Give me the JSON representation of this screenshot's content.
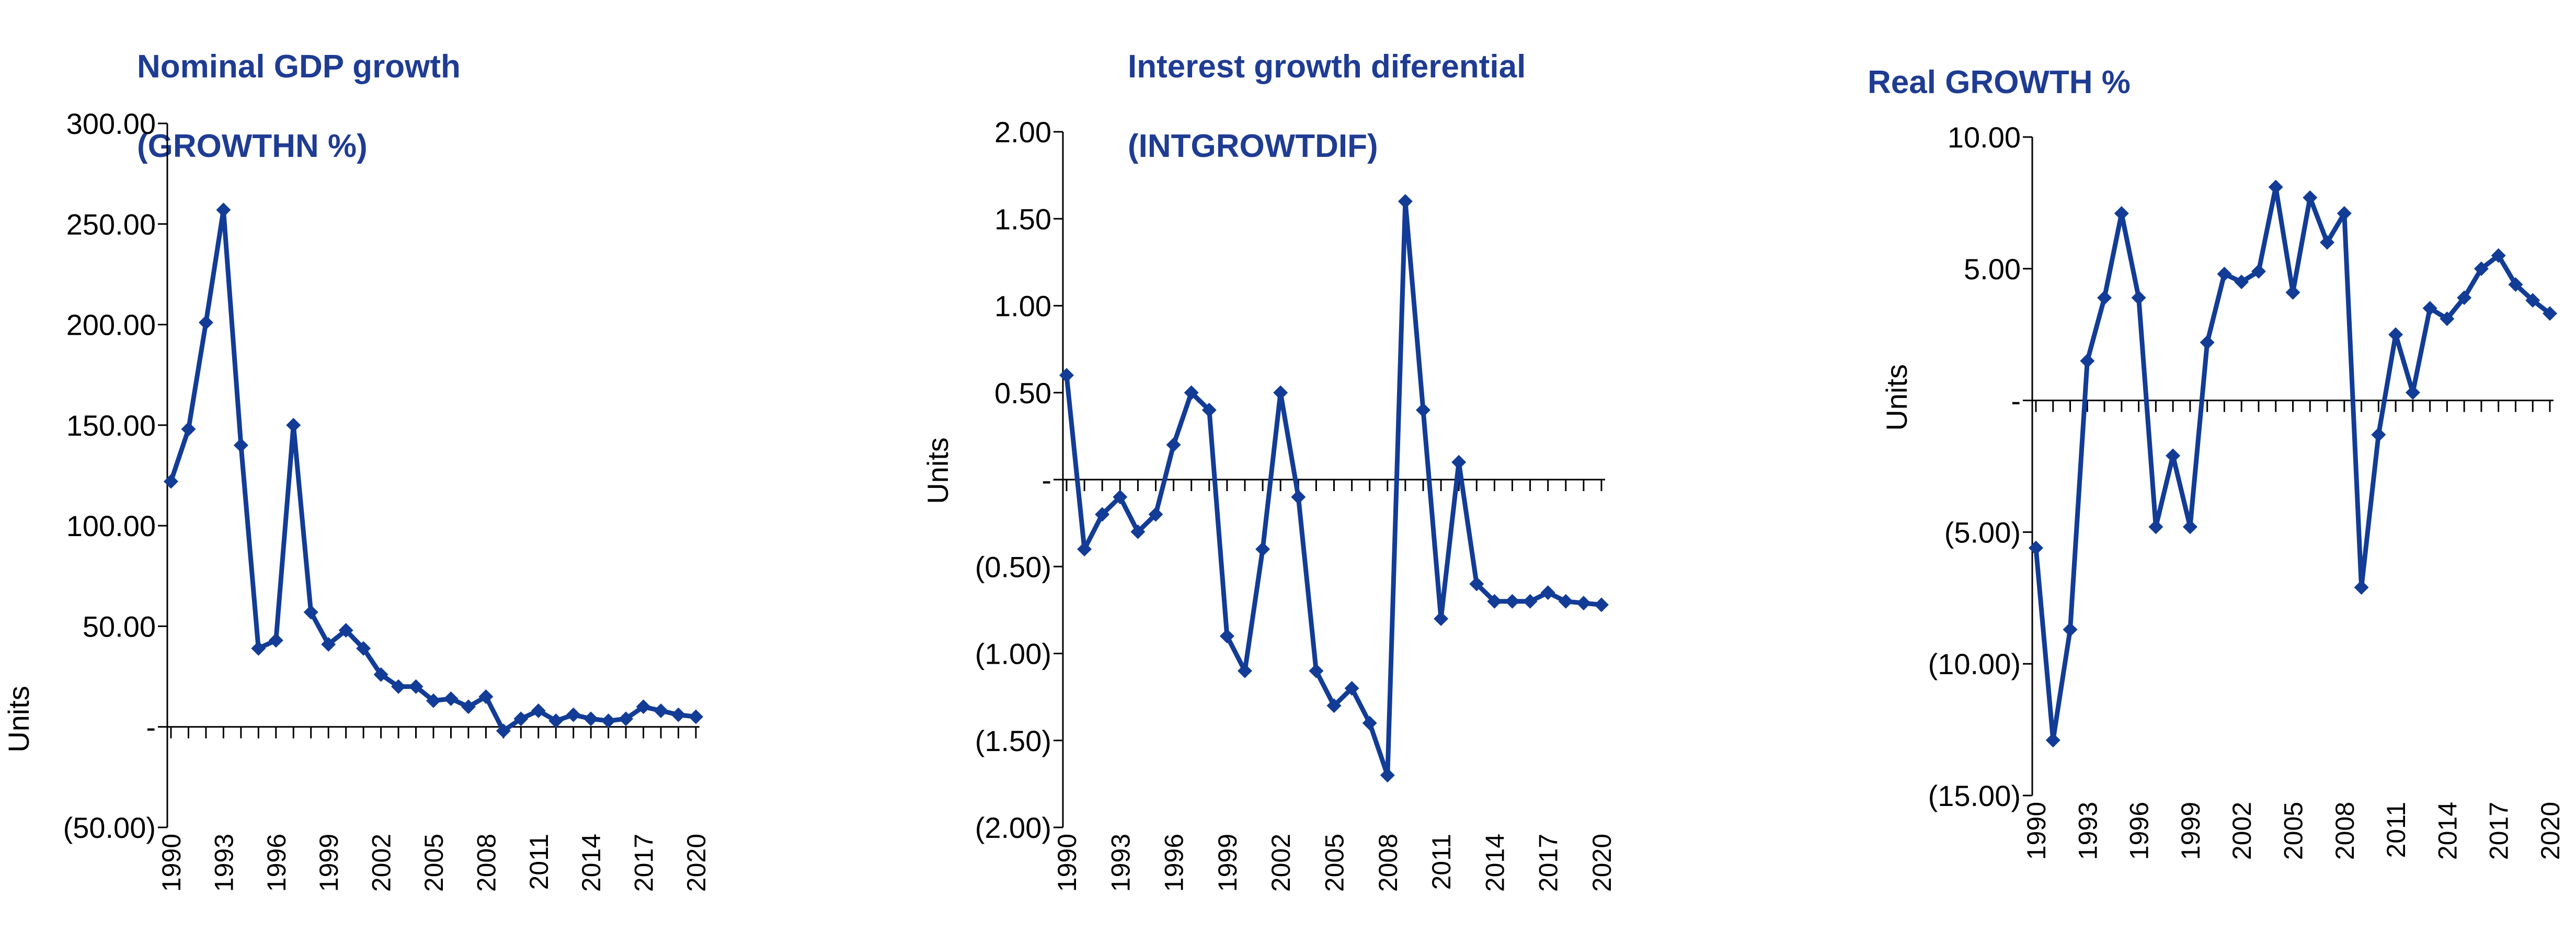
{
  "style": {
    "series_color": "#123c96",
    "title_color": "#1f3c93",
    "axis_color": "#000000"
  },
  "chart_data": [
    {
      "type": "line",
      "title_line1": "Nominal GDP growth",
      "title_line2": "(GROWTHN %)",
      "ylabel": "Units",
      "ylim": [
        -50,
        300
      ],
      "yticks": [
        300,
        250,
        200,
        150,
        100,
        50,
        0,
        -50
      ],
      "ytick_labels": [
        "300.00",
        "250.00",
        "200.00",
        "150.00",
        "100.00",
        "50.00",
        "-",
        "(50.00)"
      ],
      "x": [
        1990,
        1991,
        1992,
        1993,
        1994,
        1995,
        1996,
        1997,
        1998,
        1999,
        2000,
        2001,
        2002,
        2003,
        2004,
        2005,
        2006,
        2007,
        2008,
        2009,
        2010,
        2011,
        2012,
        2013,
        2014,
        2015,
        2016,
        2017,
        2018,
        2019,
        2020
      ],
      "xtick_labels": [
        "1990",
        "1993",
        "1996",
        "1999",
        "2002",
        "2005",
        "2008",
        "2011",
        "2014",
        "2017",
        "2020"
      ],
      "xtick_years": [
        1990,
        1993,
        1996,
        1999,
        2002,
        2005,
        2008,
        2011,
        2014,
        2017,
        2020
      ],
      "values": [
        122,
        148,
        201,
        257,
        140,
        39,
        43,
        150,
        57,
        41,
        48,
        39,
        26,
        20,
        20,
        13,
        14,
        10,
        15,
        -2,
        4,
        8,
        3,
        6,
        4,
        3,
        4,
        10,
        8,
        6,
        5
      ]
    },
    {
      "type": "line",
      "title_line1": "Interest growth diferential",
      "title_line2": "(INTGROWTDIF)",
      "ylabel": "Units",
      "ylim": [
        -2,
        2
      ],
      "yticks": [
        2,
        1.5,
        1,
        0.5,
        0,
        -0.5,
        -1,
        -1.5,
        -2
      ],
      "ytick_labels": [
        "2.00",
        "1.50",
        "1.00",
        "0.50",
        "-",
        "(0.50)",
        "(1.00)",
        "(1.50)",
        "(2.00)"
      ],
      "x": [
        1990,
        1991,
        1992,
        1993,
        1994,
        1995,
        1996,
        1997,
        1998,
        1999,
        2000,
        2001,
        2002,
        2003,
        2004,
        2005,
        2006,
        2007,
        2008,
        2009,
        2010,
        2011,
        2012,
        2013,
        2014,
        2015,
        2016,
        2017,
        2018,
        2019,
        2020
      ],
      "xtick_labels": [
        "1990",
        "1993",
        "1996",
        "1999",
        "2002",
        "2005",
        "2008",
        "2011",
        "2014",
        "2017",
        "2020"
      ],
      "xtick_years": [
        1990,
        1993,
        1996,
        1999,
        2002,
        2005,
        2008,
        2011,
        2014,
        2017,
        2020
      ],
      "values": [
        0.6,
        -0.4,
        -0.2,
        -0.1,
        -0.3,
        -0.2,
        0.2,
        0.5,
        0.4,
        -0.9,
        -1.1,
        -0.4,
        0.5,
        -0.1,
        -1.1,
        -1.3,
        -1.2,
        -1.4,
        -1.7,
        1.6,
        0.4,
        -0.8,
        0.1,
        -0.6,
        -0.7,
        -0.7,
        -0.7,
        -0.65,
        -0.7,
        -0.71,
        -0.72
      ]
    },
    {
      "type": "line",
      "title_line1": "Real GROWTH %",
      "title_line2": "",
      "ylabel": "Units",
      "ylim": [
        -15,
        10
      ],
      "yticks": [
        10,
        5,
        0,
        -5,
        -10,
        -15
      ],
      "ytick_labels": [
        "10.00",
        "5.00",
        "-",
        "(5.00)",
        "(10.00)",
        "(15.00)"
      ],
      "x": [
        1990,
        1991,
        1992,
        1993,
        1994,
        1995,
        1996,
        1997,
        1998,
        1999,
        2000,
        2001,
        2002,
        2003,
        2004,
        2005,
        2006,
        2007,
        2008,
        2009,
        2010,
        2011,
        2012,
        2013,
        2014,
        2015,
        2016,
        2017,
        2018,
        2019,
        2020
      ],
      "xtick_labels": [
        "1990",
        "1993",
        "1996",
        "1999",
        "2002",
        "2005",
        "2008",
        "2011",
        "2014",
        "2017",
        "2020"
      ],
      "xtick_years": [
        1990,
        1993,
        1996,
        1999,
        2002,
        2005,
        2008,
        2011,
        2014,
        2017,
        2020
      ],
      "values": [
        -5.6,
        -12.9,
        -8.7,
        1.5,
        3.9,
        7.1,
        3.9,
        -4.8,
        -2.1,
        -4.8,
        2.2,
        4.8,
        4.5,
        4.9,
        8.1,
        4.1,
        7.7,
        6.0,
        7.1,
        -7.1,
        -1.3,
        2.5,
        0.3,
        3.5,
        3.1,
        3.9,
        5.0,
        5.5,
        4.4,
        3.8,
        3.3
      ]
    }
  ]
}
